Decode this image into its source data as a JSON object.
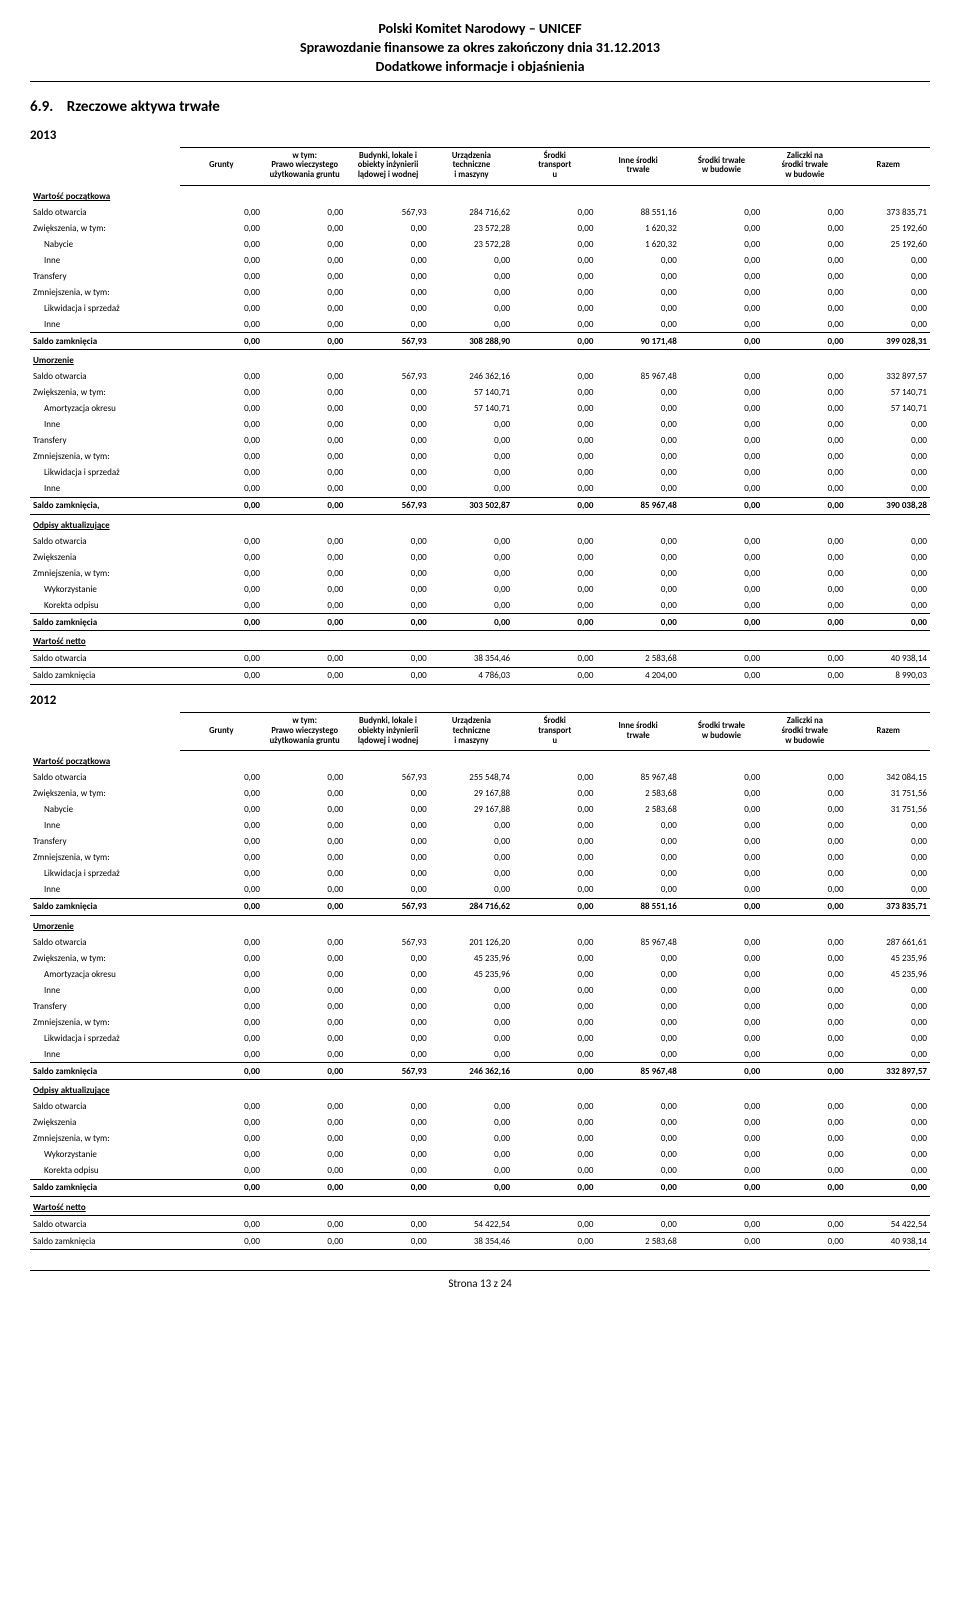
{
  "header": {
    "line1": "Polski Komitet Narodowy – UNICEF",
    "line2": "Sprawozdanie finansowe za okres zakończony dnia 31.12.2013",
    "line3": "Dodatkowe informacje i objaśnienia"
  },
  "section": {
    "number": "6.9.",
    "title": "Rzeczowe aktywa trwałe"
  },
  "columns": [
    "Grunty",
    "w tym:\nPrawo wieczystego\nużytkowania gruntu",
    "Budynki, lokale i\nobiekty inżynierii\nlądowej i wodnej",
    "Urządzenia\ntechniczne\ni maszyny",
    "Środki\ntransport\nu",
    "Inne środki\ntrwałe",
    "Środki trwałe\nw budowie",
    "Zaliczki na\nśrodki trwałe\nw budowie",
    "Razem"
  ],
  "row_labels": {
    "wartosc_poczatkowa": "Wartość początkowa",
    "saldo_otwarcia": "Saldo otwarcia",
    "zwiekszenia_wtym": "Zwiększenia, w tym:",
    "nabycie": "Nabycie",
    "amortyzacja_okresu": "Amortyzacja okresu",
    "inne": "Inne",
    "transfery": "Transfery",
    "zmniejszenia_wtym": "Zmniejszenia, w tym:",
    "likwidacja_sprzedaz": "Likwidacja i sprzedaż",
    "saldo_zamkniecia": "Saldo zamknięcia",
    "saldo_zamkniecia_c": "Saldo zamknięcia,",
    "umorzenie": "Umorzenie",
    "odpisy_aktual": "Odpisy aktualizujące",
    "zwiekszenia": "Zwiększenia",
    "wykorzystanie": "Wykorzystanie",
    "korekta_odpisu": "Korekta odpisu",
    "wartosc_netto": "Wartość netto"
  },
  "years": {
    "y2013": {
      "label": "2013",
      "wartosc_poczatkowa": {
        "saldo_otwarcia": [
          "0,00",
          "0,00",
          "567,93",
          "284 716,62",
          "0,00",
          "88 551,16",
          "0,00",
          "0,00",
          "373 835,71"
        ],
        "zwiekszenia_wtym": [
          "0,00",
          "0,00",
          "0,00",
          "23 572,28",
          "0,00",
          "1 620,32",
          "0,00",
          "0,00",
          "25 192,60"
        ],
        "nabycie": [
          "0,00",
          "0,00",
          "0,00",
          "23 572,28",
          "0,00",
          "1 620,32",
          "0,00",
          "0,00",
          "25 192,60"
        ],
        "inne1": [
          "0,00",
          "0,00",
          "0,00",
          "0,00",
          "0,00",
          "0,00",
          "0,00",
          "0,00",
          "0,00"
        ],
        "transfery": [
          "0,00",
          "0,00",
          "0,00",
          "0,00",
          "0,00",
          "0,00",
          "0,00",
          "0,00",
          "0,00"
        ],
        "zmniejszenia_wtym": [
          "0,00",
          "0,00",
          "0,00",
          "0,00",
          "0,00",
          "0,00",
          "0,00",
          "0,00",
          "0,00"
        ],
        "likwidacja_sprzedaz": [
          "0,00",
          "0,00",
          "0,00",
          "0,00",
          "0,00",
          "0,00",
          "0,00",
          "0,00",
          "0,00"
        ],
        "inne2": [
          "0,00",
          "0,00",
          "0,00",
          "0,00",
          "0,00",
          "0,00",
          "0,00",
          "0,00",
          "0,00"
        ],
        "saldo_zamkniecia": [
          "0,00",
          "0,00",
          "567,93",
          "308 288,90",
          "0,00",
          "90 171,48",
          "0,00",
          "0,00",
          "399 028,31"
        ]
      },
      "umorzenie": {
        "saldo_otwarcia": [
          "0,00",
          "0,00",
          "567,93",
          "246 362,16",
          "0,00",
          "85 967,48",
          "0,00",
          "0,00",
          "332 897,57"
        ],
        "zwiekszenia_wtym": [
          "0,00",
          "0,00",
          "0,00",
          "57 140,71",
          "0,00",
          "0,00",
          "0,00",
          "0,00",
          "57 140,71"
        ],
        "amortyzacja_okresu": [
          "0,00",
          "0,00",
          "0,00",
          "57 140,71",
          "0,00",
          "0,00",
          "0,00",
          "0,00",
          "57 140,71"
        ],
        "inne1": [
          "0,00",
          "0,00",
          "0,00",
          "0,00",
          "0,00",
          "0,00",
          "0,00",
          "0,00",
          "0,00"
        ],
        "transfery": [
          "0,00",
          "0,00",
          "0,00",
          "0,00",
          "0,00",
          "0,00",
          "0,00",
          "0,00",
          "0,00"
        ],
        "zmniejszenia_wtym": [
          "0,00",
          "0,00",
          "0,00",
          "0,00",
          "0,00",
          "0,00",
          "0,00",
          "0,00",
          "0,00"
        ],
        "likwidacja_sprzedaz": [
          "0,00",
          "0,00",
          "0,00",
          "0,00",
          "0,00",
          "0,00",
          "0,00",
          "0,00",
          "0,00"
        ],
        "inne2": [
          "0,00",
          "0,00",
          "0,00",
          "0,00",
          "0,00",
          "0,00",
          "0,00",
          "0,00",
          "0,00"
        ],
        "saldo_zamkniecia": [
          "0,00",
          "0,00",
          "567,93",
          "303 502,87",
          "0,00",
          "85 967,48",
          "0,00",
          "0,00",
          "390 038,28"
        ]
      },
      "odpisy": {
        "saldo_otwarcia": [
          "0,00",
          "0,00",
          "0,00",
          "0,00",
          "0,00",
          "0,00",
          "0,00",
          "0,00",
          "0,00"
        ],
        "zwiekszenia": [
          "0,00",
          "0,00",
          "0,00",
          "0,00",
          "0,00",
          "0,00",
          "0,00",
          "0,00",
          "0,00"
        ],
        "zmniejszenia_wtym": [
          "0,00",
          "0,00",
          "0,00",
          "0,00",
          "0,00",
          "0,00",
          "0,00",
          "0,00",
          "0,00"
        ],
        "wykorzystanie": [
          "0,00",
          "0,00",
          "0,00",
          "0,00",
          "0,00",
          "0,00",
          "0,00",
          "0,00",
          "0,00"
        ],
        "korekta_odpisu": [
          "0,00",
          "0,00",
          "0,00",
          "0,00",
          "0,00",
          "0,00",
          "0,00",
          "0,00",
          "0,00"
        ],
        "saldo_zamkniecia": [
          "0,00",
          "0,00",
          "0,00",
          "0,00",
          "0,00",
          "0,00",
          "0,00",
          "0,00",
          "0,00"
        ]
      },
      "netto": {
        "saldo_otwarcia": [
          "0,00",
          "0,00",
          "0,00",
          "38 354,46",
          "0,00",
          "2 583,68",
          "0,00",
          "0,00",
          "40 938,14"
        ],
        "saldo_zamkniecia": [
          "0,00",
          "0,00",
          "0,00",
          "4 786,03",
          "0,00",
          "4 204,00",
          "0,00",
          "0,00",
          "8 990,03"
        ]
      }
    },
    "y2012": {
      "label": "2012",
      "wartosc_poczatkowa": {
        "saldo_otwarcia": [
          "0,00",
          "0,00",
          "567,93",
          "255 548,74",
          "0,00",
          "85 967,48",
          "0,00",
          "0,00",
          "342 084,15"
        ],
        "zwiekszenia_wtym": [
          "0,00",
          "0,00",
          "0,00",
          "29 167,88",
          "0,00",
          "2 583,68",
          "0,00",
          "0,00",
          "31 751,56"
        ],
        "nabycie": [
          "0,00",
          "0,00",
          "0,00",
          "29 167,88",
          "0,00",
          "2 583,68",
          "0,00",
          "0,00",
          "31 751,56"
        ],
        "inne1": [
          "0,00",
          "0,00",
          "0,00",
          "0,00",
          "0,00",
          "0,00",
          "0,00",
          "0,00",
          "0,00"
        ],
        "transfery": [
          "0,00",
          "0,00",
          "0,00",
          "0,00",
          "0,00",
          "0,00",
          "0,00",
          "0,00",
          "0,00"
        ],
        "zmniejszenia_wtym": [
          "0,00",
          "0,00",
          "0,00",
          "0,00",
          "0,00",
          "0,00",
          "0,00",
          "0,00",
          "0,00"
        ],
        "likwidacja_sprzedaz": [
          "0,00",
          "0,00",
          "0,00",
          "0,00",
          "0,00",
          "0,00",
          "0,00",
          "0,00",
          "0,00"
        ],
        "inne2": [
          "0,00",
          "0,00",
          "0,00",
          "0,00",
          "0,00",
          "0,00",
          "0,00",
          "0,00",
          "0,00"
        ],
        "saldo_zamkniecia": [
          "0,00",
          "0,00",
          "567,93",
          "284 716,62",
          "0,00",
          "88 551,16",
          "0,00",
          "0,00",
          "373 835,71"
        ]
      },
      "umorzenie": {
        "saldo_otwarcia": [
          "0,00",
          "0,00",
          "567,93",
          "201 126,20",
          "0,00",
          "85 967,48",
          "0,00",
          "0,00",
          "287 661,61"
        ],
        "zwiekszenia_wtym": [
          "0,00",
          "0,00",
          "0,00",
          "45 235,96",
          "0,00",
          "0,00",
          "0,00",
          "0,00",
          "45 235,96"
        ],
        "amortyzacja_okresu": [
          "0,00",
          "0,00",
          "0,00",
          "45 235,96",
          "0,00",
          "0,00",
          "0,00",
          "0,00",
          "45 235,96"
        ],
        "inne1": [
          "0,00",
          "0,00",
          "0,00",
          "0,00",
          "0,00",
          "0,00",
          "0,00",
          "0,00",
          "0,00"
        ],
        "transfery": [
          "0,00",
          "0,00",
          "0,00",
          "0,00",
          "0,00",
          "0,00",
          "0,00",
          "0,00",
          "0,00"
        ],
        "zmniejszenia_wtym": [
          "0,00",
          "0,00",
          "0,00",
          "0,00",
          "0,00",
          "0,00",
          "0,00",
          "0,00",
          "0,00"
        ],
        "likwidacja_sprzedaz": [
          "0,00",
          "0,00",
          "0,00",
          "0,00",
          "0,00",
          "0,00",
          "0,00",
          "0,00",
          "0,00"
        ],
        "inne2": [
          "0,00",
          "0,00",
          "0,00",
          "0,00",
          "0,00",
          "0,00",
          "0,00",
          "0,00",
          "0,00"
        ],
        "saldo_zamkniecia": [
          "0,00",
          "0,00",
          "567,93",
          "246 362,16",
          "0,00",
          "85 967,48",
          "0,00",
          "0,00",
          "332 897,57"
        ]
      },
      "odpisy": {
        "saldo_otwarcia": [
          "0,00",
          "0,00",
          "0,00",
          "0,00",
          "0,00",
          "0,00",
          "0,00",
          "0,00",
          "0,00"
        ],
        "zwiekszenia": [
          "0,00",
          "0,00",
          "0,00",
          "0,00",
          "0,00",
          "0,00",
          "0,00",
          "0,00",
          "0,00"
        ],
        "zmniejszenia_wtym": [
          "0,00",
          "0,00",
          "0,00",
          "0,00",
          "0,00",
          "0,00",
          "0,00",
          "0,00",
          "0,00"
        ],
        "wykorzystanie": [
          "0,00",
          "0,00",
          "0,00",
          "0,00",
          "0,00",
          "0,00",
          "0,00",
          "0,00",
          "0,00"
        ],
        "korekta_odpisu": [
          "0,00",
          "0,00",
          "0,00",
          "0,00",
          "0,00",
          "0,00",
          "0,00",
          "0,00",
          "0,00"
        ],
        "saldo_zamkniecia": [
          "0,00",
          "0,00",
          "0,00",
          "0,00",
          "0,00",
          "0,00",
          "0,00",
          "0,00",
          "0,00"
        ]
      },
      "netto": {
        "saldo_otwarcia": [
          "0,00",
          "0,00",
          "0,00",
          "54 422,54",
          "0,00",
          "0,00",
          "0,00",
          "0,00",
          "54 422,54"
        ],
        "saldo_zamkniecia": [
          "0,00",
          "0,00",
          "0,00",
          "38 354,46",
          "0,00",
          "2 583,68",
          "0,00",
          "0,00",
          "40 938,14"
        ]
      }
    }
  },
  "footer": "Strona 13 z 24"
}
